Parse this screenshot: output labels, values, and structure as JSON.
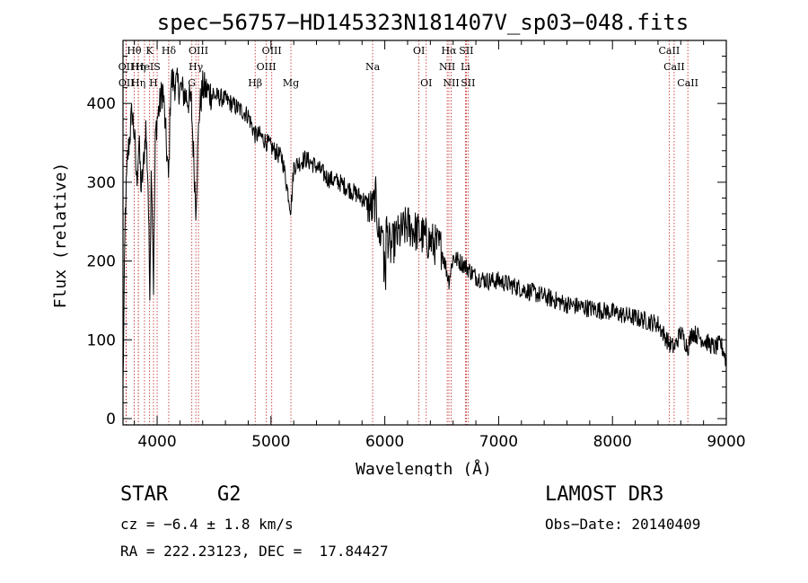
{
  "chart_data": {
    "type": "line",
    "title": "spec−56757−HD145323N181407V_sp03−048.fits",
    "xlabel": "Wavelength (Å)",
    "ylabel": "Flux (relative)",
    "xlim": [
      3700,
      9000
    ],
    "ylim": [
      -8,
      480
    ],
    "xticks": [
      4000,
      5000,
      6000,
      7000,
      8000,
      9000
    ],
    "yticks": [
      0,
      100,
      200,
      300,
      400
    ],
    "spectrum_anchors": [
      [
        3700,
        40
      ],
      [
        3720,
        260
      ],
      [
        3740,
        330
      ],
      [
        3760,
        360
      ],
      [
        3780,
        390
      ],
      [
        3800,
        360
      ],
      [
        3820,
        300
      ],
      [
        3840,
        350
      ],
      [
        3860,
        290
      ],
      [
        3880,
        320
      ],
      [
        3900,
        370
      ],
      [
        3920,
        300
      ],
      [
        3935,
        160
      ],
      [
        3950,
        330
      ],
      [
        3968,
        170
      ],
      [
        3985,
        360
      ],
      [
        4000,
        380
      ],
      [
        4050,
        420
      ],
      [
        4101,
        300
      ],
      [
        4120,
        430
      ],
      [
        4200,
        420
      ],
      [
        4300,
        400
      ],
      [
        4340,
        270
      ],
      [
        4370,
        390
      ],
      [
        4400,
        420
      ],
      [
        4500,
        410
      ],
      [
        4600,
        405
      ],
      [
        4700,
        395
      ],
      [
        4800,
        385
      ],
      [
        4861,
        360
      ],
      [
        4900,
        360
      ],
      [
        5000,
        345
      ],
      [
        5100,
        330
      ],
      [
        5175,
        265
      ],
      [
        5200,
        320
      ],
      [
        5300,
        330
      ],
      [
        5400,
        320
      ],
      [
        5500,
        305
      ],
      [
        5600,
        300
      ],
      [
        5700,
        290
      ],
      [
        5800,
        280
      ],
      [
        5893,
        265
      ],
      [
        5920,
        280
      ],
      [
        5950,
        230
      ],
      [
        6000,
        250
      ],
      [
        6050,
        215
      ],
      [
        6100,
        230
      ],
      [
        6200,
        245
      ],
      [
        6300,
        235
      ],
      [
        6400,
        225
      ],
      [
        6500,
        215
      ],
      [
        6563,
        175
      ],
      [
        6600,
        205
      ],
      [
        6700,
        195
      ],
      [
        6800,
        180
      ],
      [
        6900,
        175
      ],
      [
        7000,
        175
      ],
      [
        7100,
        170
      ],
      [
        7200,
        165
      ],
      [
        7400,
        155
      ],
      [
        7600,
        145
      ],
      [
        7800,
        140
      ],
      [
        8000,
        135
      ],
      [
        8200,
        128
      ],
      [
        8400,
        120
      ],
      [
        8498,
        95
      ],
      [
        8542,
        90
      ],
      [
        8600,
        110
      ],
      [
        8662,
        90
      ],
      [
        8700,
        110
      ],
      [
        8800,
        100
      ],
      [
        8900,
        90
      ],
      [
        8950,
        95
      ],
      [
        8980,
        85
      ],
      [
        9000,
        70
      ]
    ],
    "spectral_lines": [
      {
        "label": "Hθ",
        "wavelength": 3798,
        "row": 0
      },
      {
        "label": "K",
        "wavelength": 3934,
        "row": 0
      },
      {
        "label": "Hδ",
        "wavelength": 4102,
        "row": 0
      },
      {
        "label": "OIII",
        "wavelength": 4363,
        "row": 0
      },
      {
        "label": "OIII",
        "wavelength": 5007,
        "row": 0
      },
      {
        "label": "OI",
        "wavelength": 6300,
        "row": 0
      },
      {
        "label": "Hα",
        "wavelength": 6563,
        "row": 0
      },
      {
        "label": "SII",
        "wavelength": 6716,
        "row": 0
      },
      {
        "label": "CaII",
        "wavelength": 8498,
        "row": 0
      },
      {
        "label": "OII",
        "wavelength": 3727,
        "row": 1
      },
      {
        "label": "Hη",
        "wavelength": 3835,
        "row": 1
      },
      {
        "label": "HeI",
        "wavelength": 3889,
        "row": 1
      },
      {
        "label": "S",
        "wavelength": 4000,
        "row": 1
      },
      {
        "label": "Hγ",
        "wavelength": 4340,
        "row": 1
      },
      {
        "label": "OIII",
        "wavelength": 4959,
        "row": 1
      },
      {
        "label": "Na",
        "wavelength": 5893,
        "row": 1
      },
      {
        "label": "NII",
        "wavelength": 6548,
        "row": 1
      },
      {
        "label": "Li",
        "wavelength": 6708,
        "row": 1
      },
      {
        "label": "CaII",
        "wavelength": 8542,
        "row": 1
      },
      {
        "label": "OII",
        "wavelength": 3729,
        "row": 2
      },
      {
        "label": "Hη",
        "wavelength": 3835,
        "row": 2
      },
      {
        "label": "H",
        "wavelength": 3968,
        "row": 2
      },
      {
        "label": "G",
        "wavelength": 4305,
        "row": 2
      },
      {
        "label": "Hβ",
        "wavelength": 4861,
        "row": 2
      },
      {
        "label": "Mg",
        "wavelength": 5175,
        "row": 2
      },
      {
        "label": "OI",
        "wavelength": 6364,
        "row": 2
      },
      {
        "label": "NII",
        "wavelength": 6583,
        "row": 2
      },
      {
        "label": "SII",
        "wavelength": 6731,
        "row": 2
      },
      {
        "label": "CaII",
        "wavelength": 8662,
        "row": 2
      }
    ],
    "line_color": "#000000",
    "marker_color": "#c02020"
  },
  "info": {
    "class_label": "STAR",
    "subclass": "G2",
    "survey": "LAMOST DR3",
    "cz": "cz = −6.4 ± 1.8 km/s",
    "obs_date": "Obs−Date: 20140409",
    "coords": "RA = 222.23123, DEC =  17.84427"
  }
}
